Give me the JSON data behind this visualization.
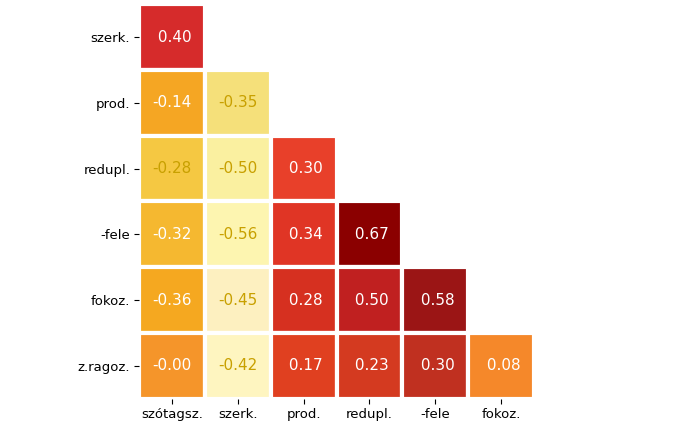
{
  "row_labels": [
    "szerk.",
    "prod.",
    "redupl.",
    "-fele",
    "fokoz.",
    "z.ragoz."
  ],
  "col_labels": [
    "szótagsz.",
    "szerk.",
    "prod.",
    "redupl.",
    "-fele",
    "fokoz."
  ],
  "values": [
    [
      0.4,
      null,
      null,
      null,
      null,
      null
    ],
    [
      -0.14,
      -0.35,
      null,
      null,
      null,
      null
    ],
    [
      -0.28,
      -0.5,
      0.3,
      null,
      null,
      null
    ],
    [
      -0.32,
      -0.56,
      0.34,
      0.67,
      null,
      null
    ],
    [
      -0.36,
      -0.45,
      0.28,
      0.5,
      0.58,
      null
    ],
    [
      0.0,
      -0.42,
      0.17,
      0.23,
      0.3,
      0.08
    ]
  ],
  "value_labels": [
    [
      " 0.40",
      null,
      null,
      null,
      null,
      null
    ],
    [
      "-0.14",
      "-0.35",
      null,
      null,
      null,
      null
    ],
    [
      "-0.28",
      "-0.50",
      " 0.30",
      null,
      null,
      null
    ],
    [
      "-0.32",
      "-0.56",
      " 0.34",
      " 0.67",
      null,
      null
    ],
    [
      "-0.36",
      "-0.45",
      " 0.28",
      " 0.50",
      " 0.58",
      null
    ],
    [
      "-0.00",
      "-0.42",
      " 0.17",
      " 0.23",
      " 0.30",
      " 0.08"
    ]
  ],
  "cell_colors": [
    [
      "#d62b2b",
      null,
      null,
      null,
      null,
      null
    ],
    [
      "#f5a623",
      "#f5e07a",
      null,
      null,
      null,
      null
    ],
    [
      "#f5c842",
      "#faf0a0",
      "#e8402a",
      null,
      null,
      null
    ],
    [
      "#f5b830",
      "#fdf5b0",
      "#e03525",
      "#8b0000",
      null,
      null
    ],
    [
      "#f5a820",
      "#fdf0c0",
      "#d63020",
      "#c02020",
      "#9b1515",
      null
    ],
    [
      "#f5952a",
      "#fef5c0",
      "#e04020",
      "#d43a20",
      "#c03020",
      "#f5882a"
    ]
  ],
  "text_colors": [
    [
      "#ffffff",
      null,
      null,
      null,
      null,
      null
    ],
    [
      "#ffffff",
      "#c8a000",
      null,
      null,
      null,
      null
    ],
    [
      "#c8a000",
      "#c8a000",
      "#ffffff",
      null,
      null,
      null
    ],
    [
      "#ffffff",
      "#c8a000",
      "#ffffff",
      "#ffffff",
      null,
      null
    ],
    [
      "#ffffff",
      "#c8a000",
      "#ffffff",
      "#ffffff",
      "#ffffff",
      null
    ],
    [
      "#ffffff",
      "#c8a000",
      "#ffffff",
      "#ffffff",
      "#ffffff",
      "#ffffff"
    ]
  ],
  "background_color": "#ffffff",
  "value_fontsize": 11
}
